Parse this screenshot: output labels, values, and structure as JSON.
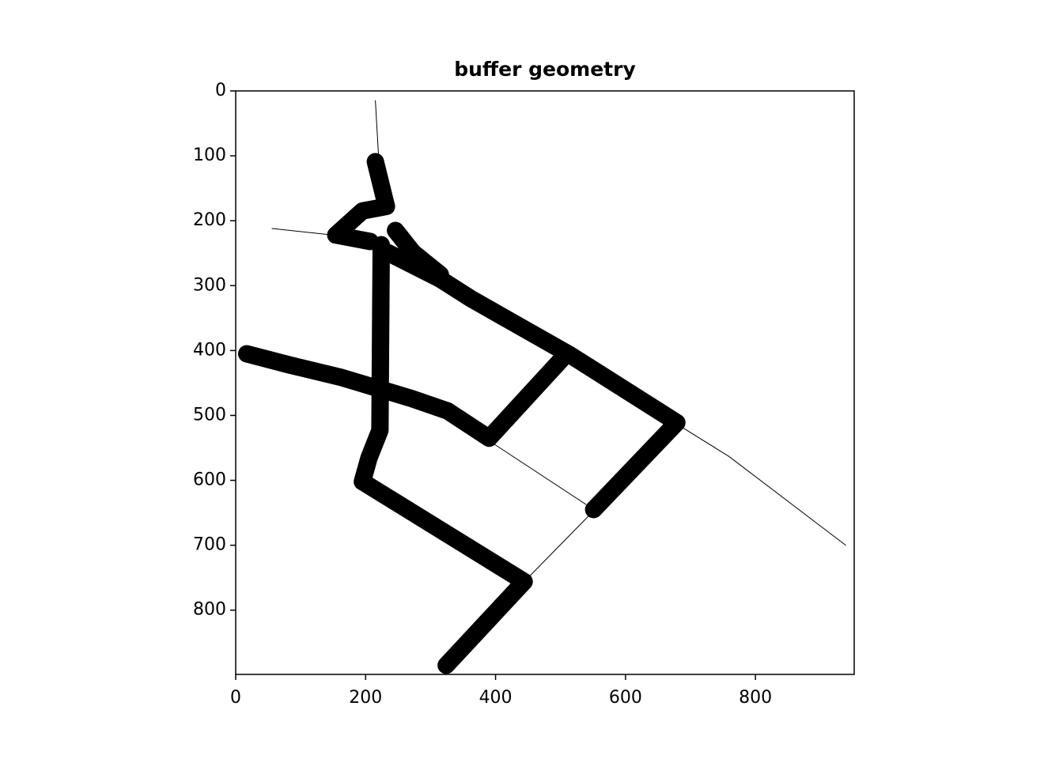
{
  "chart_data": {
    "type": "line",
    "title": "buffer geometry",
    "xlim": [
      0,
      952
    ],
    "ylim": [
      0,
      899
    ],
    "invert_y": true,
    "xticks": [
      0,
      200,
      400,
      600,
      800
    ],
    "yticks": [
      0,
      100,
      200,
      300,
      400,
      500,
      600,
      700,
      800
    ],
    "series": [
      {
        "color": "#000000",
        "width": 1,
        "x": [
          215,
          220
        ],
        "values": [
          15,
          102
        ]
      },
      {
        "color": "#000000",
        "width": 1,
        "x": [
          56,
          149
        ],
        "values": [
          212,
          222
        ]
      },
      {
        "color": "#000000",
        "width": 1,
        "x": [
          685,
          759,
          939
        ],
        "values": [
          517,
          563,
          700
        ]
      },
      {
        "color": "#000000",
        "width": 1,
        "x": [
          393,
          539
        ],
        "values": [
          541,
          637
        ]
      },
      {
        "color": "#000000",
        "width": 1,
        "x": [
          451,
          549
        ],
        "values": [
          749,
          649
        ]
      },
      {
        "color": "#000000",
        "width": 22,
        "x": [
          215,
          232,
          195,
          154,
          207
        ],
        "values": [
          109,
          178,
          185,
          222,
          232
        ]
      },
      {
        "color": "#000000",
        "width": 22,
        "x": [
          224,
          222,
          205,
          195,
          444,
          324
        ],
        "values": [
          237,
          523,
          566,
          602,
          756,
          885
        ]
      },
      {
        "color": "#000000",
        "width": 22,
        "x": [
          246,
          273,
          315
        ],
        "values": [
          215,
          249,
          283
        ]
      },
      {
        "color": "#000000",
        "width": 22,
        "x": [
          234,
          315,
          362,
          515,
          679,
          551
        ],
        "values": [
          249,
          290,
          320,
          407,
          511,
          645
        ]
      },
      {
        "color": "#000000",
        "width": 22,
        "x": [
          17,
          82,
          161,
          271,
          326,
          390,
          502
        ],
        "values": [
          405,
          422,
          441,
          474,
          493,
          535,
          413
        ]
      }
    ]
  }
}
